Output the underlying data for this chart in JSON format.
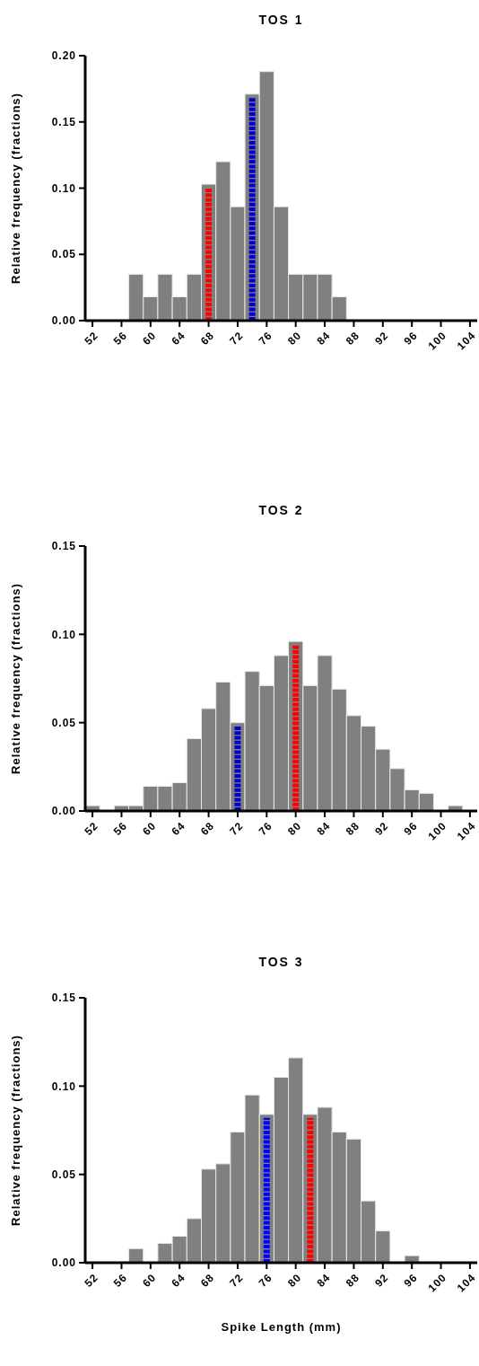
{
  "chart_data": [
    {
      "type": "histogram",
      "title": "TOS 1",
      "ylabel": "Relative frequency (fractions)",
      "color": "#808080",
      "bins": [
        51,
        53,
        55,
        57,
        59,
        61,
        63,
        65,
        67,
        69,
        71,
        73,
        75,
        77,
        79,
        81,
        83,
        85,
        87,
        89,
        91,
        93,
        95,
        97,
        99,
        101,
        103,
        105
      ],
      "values": [
        0,
        0,
        0,
        0.035,
        0.018,
        0.035,
        0.018,
        0.035,
        0.103,
        0.12,
        0.086,
        0.171,
        0.188,
        0.086,
        0.035,
        0.035,
        0.035,
        0.018,
        0,
        0,
        0,
        0,
        0,
        0,
        0,
        0,
        0
      ],
      "xlim": [
        51,
        105
      ],
      "xticks": [
        52,
        56,
        60,
        64,
        68,
        72,
        76,
        80,
        84,
        88,
        92,
        96,
        100,
        104
      ],
      "ylim": [
        0,
        0.2
      ],
      "yticks": [
        {
          "value": 0,
          "label": "0.00"
        },
        {
          "value": 0.05,
          "label": "0.05"
        },
        {
          "value": 0.1,
          "label": "0.10"
        },
        {
          "value": 0.15,
          "label": "0.15"
        },
        {
          "value": 0.2,
          "label": "0.20"
        }
      ],
      "ref_lines": [
        {
          "axis": "x",
          "value": 68,
          "color": "#ff0000",
          "line_style": "dotted"
        },
        {
          "axis": "x",
          "value": 74,
          "color": "#0000cc",
          "line_style": "dotted"
        }
      ]
    },
    {
      "type": "histogram",
      "title": "TOS 2",
      "ylabel": "Relative frequency (fractions)",
      "color": "#808080",
      "bins": [
        51,
        53,
        55,
        57,
        59,
        61,
        63,
        65,
        67,
        69,
        71,
        73,
        75,
        77,
        79,
        81,
        83,
        85,
        87,
        89,
        91,
        93,
        95,
        97,
        99,
        101,
        103,
        105
      ],
      "values": [
        0.003,
        0,
        0.003,
        0.003,
        0.014,
        0.014,
        0.016,
        0.041,
        0.058,
        0.073,
        0.05,
        0.079,
        0.071,
        0.088,
        0.096,
        0.071,
        0.088,
        0.069,
        0.054,
        0.048,
        0.035,
        0.024,
        0.012,
        0.01,
        0,
        0.003,
        0
      ],
      "xlim": [
        51,
        105
      ],
      "xticks": [
        52,
        56,
        60,
        64,
        68,
        72,
        76,
        80,
        84,
        88,
        92,
        96,
        100,
        104
      ],
      "ylim": [
        0,
        0.15
      ],
      "yticks": [
        {
          "value": 0,
          "label": "0.00"
        },
        {
          "value": 0.05,
          "label": "0.05"
        },
        {
          "value": 0.1,
          "label": "0.10"
        },
        {
          "value": 0.15,
          "label": "0.15"
        }
      ],
      "ref_lines": [
        {
          "axis": "x",
          "value": 72,
          "color": "#0000cc",
          "line_style": "dotted"
        },
        {
          "axis": "x",
          "value": 80,
          "color": "#ff0000",
          "line_style": "dotted"
        }
      ]
    },
    {
      "type": "histogram",
      "title": "TOS 3",
      "ylabel": "Relative frequency (fractions)",
      "xlabel": "Spike Length (mm)",
      "color": "#808080",
      "bins": [
        51,
        53,
        55,
        57,
        59,
        61,
        63,
        65,
        67,
        69,
        71,
        73,
        75,
        77,
        79,
        81,
        83,
        85,
        87,
        89,
        91,
        93,
        95,
        97,
        99,
        101,
        103,
        105
      ],
      "values": [
        0,
        0,
        0,
        0.008,
        0,
        0.011,
        0.015,
        0.025,
        0.053,
        0.056,
        0.074,
        0.095,
        0.084,
        0.105,
        0.116,
        0.084,
        0.088,
        0.074,
        0.07,
        0.035,
        0.018,
        0,
        0.004,
        0,
        0,
        0,
        0
      ],
      "xlim": [
        51,
        105
      ],
      "xticks": [
        52,
        56,
        60,
        64,
        68,
        72,
        76,
        80,
        84,
        88,
        92,
        96,
        100,
        104
      ],
      "ylim": [
        0,
        0.15
      ],
      "yticks": [
        {
          "value": 0,
          "label": "0.00"
        },
        {
          "value": 0.05,
          "label": "0.05"
        },
        {
          "value": 0.1,
          "label": "0.10"
        },
        {
          "value": 0.15,
          "label": "0.15"
        }
      ],
      "ref_lines": [
        {
          "axis": "x",
          "value": 76,
          "color": "#0000ff",
          "line_style": "dotted"
        },
        {
          "axis": "x",
          "value": 82,
          "color": "#ff0000",
          "line_style": "dotted"
        }
      ]
    }
  ]
}
